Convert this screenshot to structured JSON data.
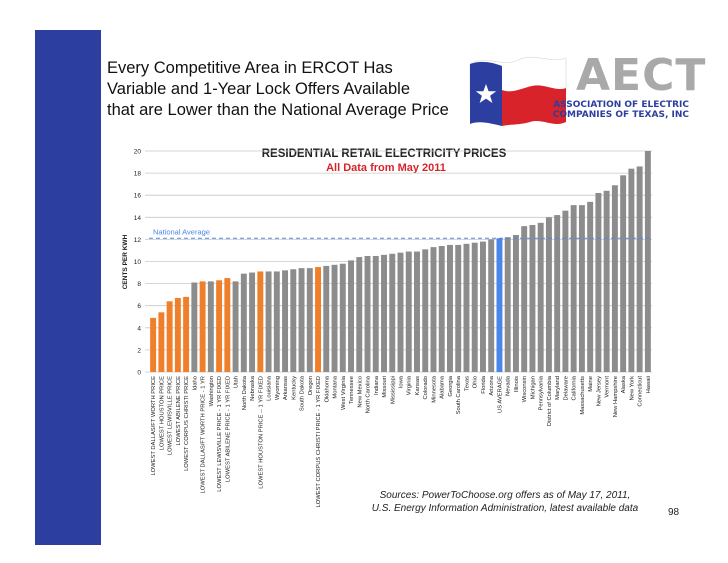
{
  "slide": {
    "title": "Every Competitive Area in ERCOT Has\nVariable and 1-Year Lock Offers Available\nthat are Lower than the National Average Price",
    "sources": "Sources: PowerToChoose.org offers as of May 17, 2011,\nU.S. Energy Information Administration, latest available data",
    "page_number": "98"
  },
  "logo": {
    "wordmark": "AECT",
    "line1": "ASSOCIATION OF ELECTRIC",
    "line2": "COMPANIES OF TEXAS, INC",
    "colors": {
      "blue": "#2c3fa0",
      "red": "#d8232a",
      "gray": "#a9a9a9"
    },
    "icon": "texas-flag-icon"
  },
  "chart_data": {
    "type": "bar",
    "title": "RESIDENTIAL RETAIL ELECTRICITY PRICES",
    "subtitle": "All Data from May 2011",
    "ylabel": "CENTS PER KWH",
    "xlabel": "",
    "ylim": [
      0,
      20
    ],
    "yticks": [
      0,
      2,
      4,
      6,
      8,
      10,
      12,
      14,
      16,
      18,
      20
    ],
    "grid": true,
    "reference_line": {
      "label": "National Average",
      "value": 12.1
    },
    "colors": {
      "default": "#8c8c8c",
      "texas_offer": "#f07f2c",
      "us_average": "#4a86e8",
      "avg_line": "#4a86e8",
      "title_red": "#d8232a"
    },
    "categories": [
      "LOWEST DALLAS/FT WORTH PRICE",
      "LOWEST HOUSTON PRICE",
      "LOWEST LEWISVILLE PRICE",
      "LOWEST ABILENE PRICE",
      "LOWEST CORPUS CHRISTI PRICE",
      "Idaho",
      "LOWEST DALLAS/FT WORTH PRICE - 1 YR",
      "Washington",
      "LOWEST LEWISVILLE PRICE - 1 YR FIXED",
      "LOWEST ABILENE PRICE - 1 YR FIXED",
      "Utah",
      "North Dakota",
      "Nebraska",
      "LOWEST HOUSTON PRICE -- 1 YR FIXED",
      "Louisiana",
      "Wyoming",
      "Arkansas",
      "Kentucky",
      "South Dakota",
      "Oregon",
      "LOWEST CORPUS CHRISTI PRICE - 1 YR FIXED",
      "Oklahoma",
      "Montana",
      "West Virginia",
      "Tennessee",
      "New Mexico",
      "North Carolina",
      "Indiana",
      "Missouri",
      "Mississippi",
      "Iowa",
      "Virginia",
      "Kansas",
      "Colorado",
      "Minnesota",
      "Alabama",
      "Georgia",
      "South Carolina",
      "Texas",
      "Ohio",
      "Florida",
      "Arizona",
      "US AVERAGE",
      "Nevada",
      "Illinois",
      "Wisconsin",
      "Michigan",
      "Pennsylvania",
      "District of Columbia",
      "Maryland",
      "Delaware",
      "California",
      "Massachusetts",
      "Maine",
      "New Jersey",
      "Vermont",
      "New Hampshire",
      "Alaska",
      "New York",
      "Connecticut",
      "Hawaii"
    ],
    "values": [
      4.9,
      5.4,
      6.4,
      6.7,
      6.8,
      8.1,
      8.2,
      8.2,
      8.3,
      8.5,
      8.2,
      8.9,
      9.0,
      9.1,
      9.1,
      9.1,
      9.2,
      9.3,
      9.4,
      9.4,
      9.5,
      9.6,
      9.7,
      9.8,
      10.1,
      10.4,
      10.5,
      10.5,
      10.6,
      10.7,
      10.8,
      10.9,
      10.9,
      11.1,
      11.3,
      11.4,
      11.5,
      11.5,
      11.6,
      11.7,
      11.8,
      12.0,
      12.1,
      12.2,
      12.4,
      13.2,
      13.3,
      13.5,
      14.0,
      14.2,
      14.6,
      15.1,
      15.1,
      15.4,
      16.2,
      16.4,
      16.9,
      17.8,
      18.4,
      18.6,
      20.0
    ],
    "highlight": [
      "texas_offer",
      "texas_offer",
      "texas_offer",
      "texas_offer",
      "texas_offer",
      "default",
      "texas_offer",
      "default",
      "texas_offer",
      "texas_offer",
      "default",
      "default",
      "default",
      "texas_offer",
      "default",
      "default",
      "default",
      "default",
      "default",
      "default",
      "texas_offer",
      "default",
      "default",
      "default",
      "default",
      "default",
      "default",
      "default",
      "default",
      "default",
      "default",
      "default",
      "default",
      "default",
      "default",
      "default",
      "default",
      "default",
      "default",
      "default",
      "default",
      "default",
      "us_average",
      "default",
      "default",
      "default",
      "default",
      "default",
      "default",
      "default",
      "default",
      "default",
      "default",
      "default",
      "default",
      "default",
      "default",
      "default",
      "default",
      "default",
      "default"
    ]
  }
}
